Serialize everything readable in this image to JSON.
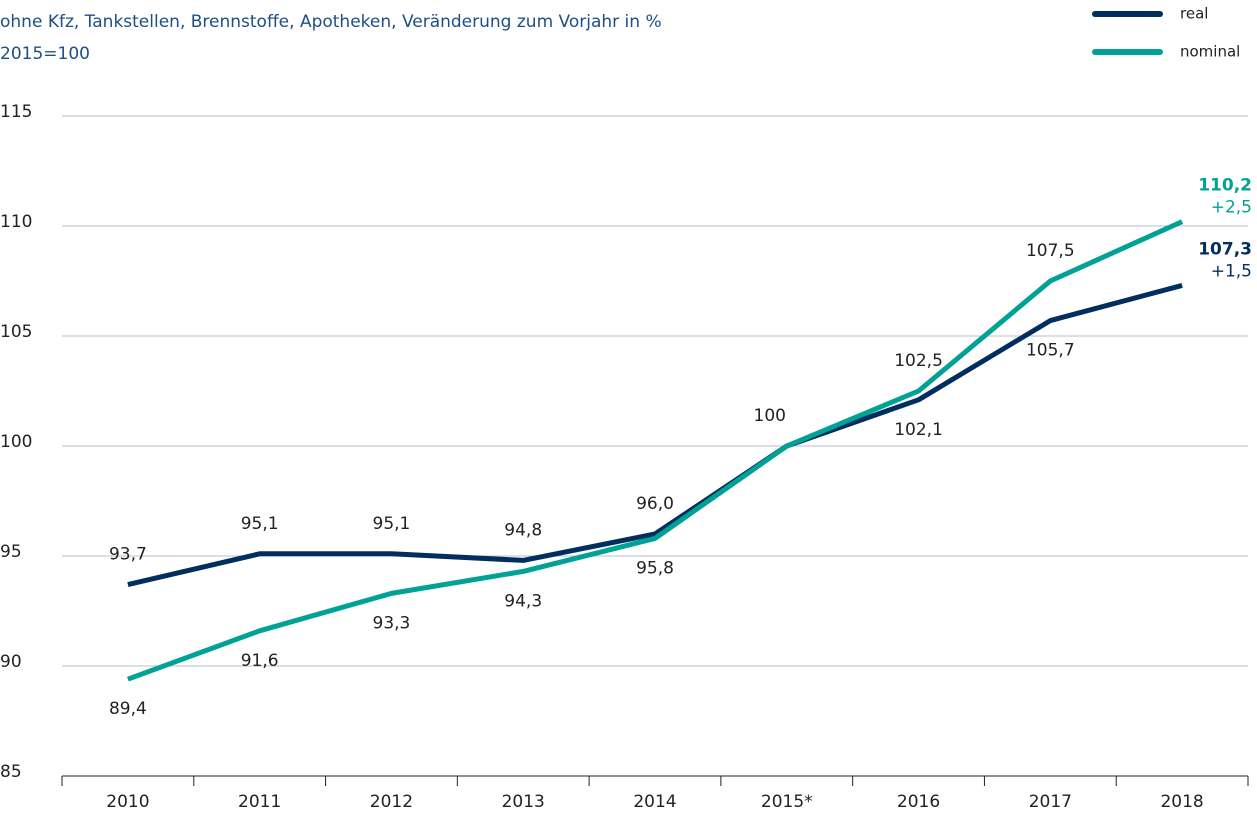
{
  "chart_data": {
    "type": "line",
    "subtitle": [
      "ohne Kfz, Tankstellen, Brennstoffe, Apotheken, Veränderung zum Vorjahr in %",
      "2015=100"
    ],
    "categories": [
      "2010",
      "2011",
      "2012",
      "2013",
      "2014",
      "2015*",
      "2016",
      "2017",
      "2018"
    ],
    "series": [
      {
        "name": "real",
        "color": "#002e5f",
        "values": [
          93.7,
          95.1,
          95.1,
          94.8,
          96.0,
          100,
          102.1,
          105.7,
          107.3
        ],
        "value_labels": [
          "93,7",
          "95,1",
          "95,1",
          "94,8",
          "96,0",
          "100",
          "102,1",
          "105,7",
          "107,3"
        ],
        "change_label": "+1,5"
      },
      {
        "name": "nominal",
        "color": "#00a295",
        "values": [
          89.4,
          91.6,
          93.3,
          94.3,
          95.8,
          100,
          102.5,
          107.5,
          110.2
        ],
        "value_labels": [
          "89,4",
          "91,6",
          "93,3",
          "94,3",
          "95,8",
          null,
          "102,5",
          "107,5",
          "110,2"
        ],
        "change_label": "+2,5"
      }
    ],
    "ylim": [
      85,
      115
    ],
    "yticks": [
      85,
      90,
      95,
      100,
      105,
      110,
      115
    ],
    "grid": true,
    "legend": "top-right"
  }
}
